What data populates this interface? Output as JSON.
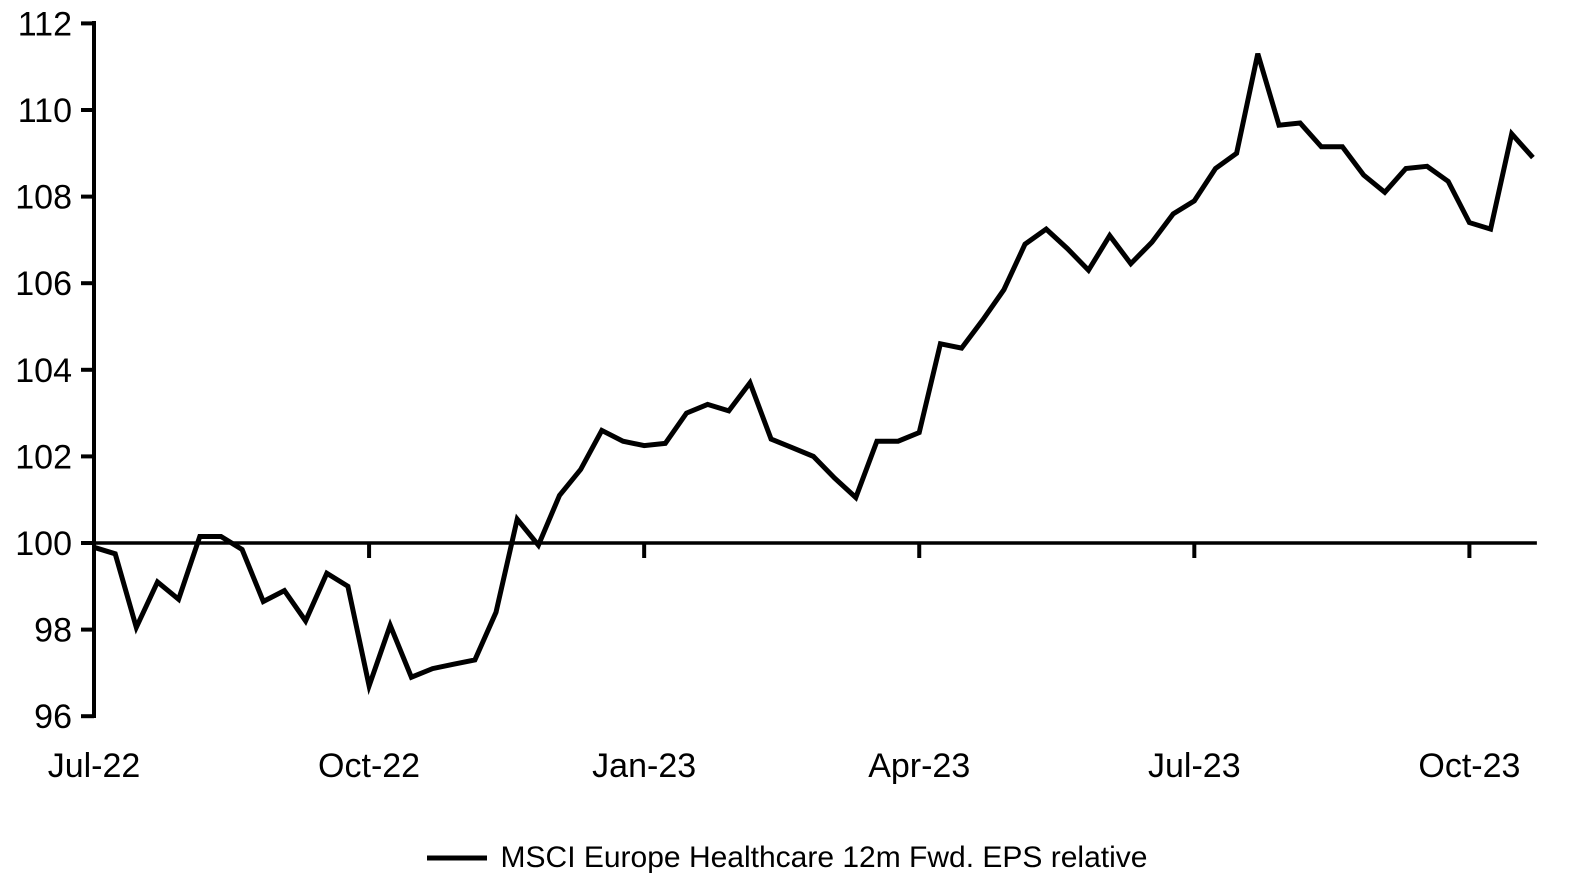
{
  "chart_data": {
    "type": "line",
    "title": "",
    "xlabel": "",
    "ylabel": "",
    "x_unit": "weeks from Jul-2022 (weekly observations)",
    "x": [
      0,
      1,
      2,
      3,
      4,
      5,
      6,
      7,
      8,
      9,
      10,
      11,
      12,
      13,
      14,
      15,
      16,
      17,
      18,
      19,
      20,
      21,
      22,
      23,
      24,
      25,
      26,
      27,
      28,
      29,
      30,
      31,
      32,
      33,
      34,
      35,
      36,
      37,
      38,
      39,
      40,
      41,
      42,
      43,
      44,
      45,
      46,
      47,
      48,
      49,
      50,
      51,
      52,
      53,
      54,
      55,
      56,
      57,
      58,
      59,
      60,
      61,
      62,
      63,
      64,
      65,
      66,
      67,
      68
    ],
    "series": [
      {
        "name": "MSCI Europe Healthcare 12m Fwd. EPS relative",
        "values": [
          99.9,
          99.75,
          98.05,
          99.1,
          98.7,
          100.15,
          100.15,
          99.85,
          98.65,
          98.9,
          98.2,
          99.3,
          99.0,
          96.7,
          98.1,
          96.9,
          97.1,
          97.2,
          97.3,
          98.4,
          100.55,
          99.95,
          101.1,
          101.7,
          102.6,
          102.35,
          102.25,
          102.3,
          103.0,
          103.2,
          103.05,
          103.7,
          102.4,
          102.2,
          102.0,
          101.5,
          101.05,
          102.35,
          102.35,
          102.55,
          104.6,
          104.5,
          105.15,
          105.85,
          106.9,
          107.25,
          106.8,
          106.3,
          107.1,
          106.45,
          106.95,
          107.6,
          107.9,
          108.65,
          109.0,
          111.3,
          109.65,
          109.7,
          109.15,
          109.15,
          108.5,
          108.1,
          108.65,
          108.7,
          108.35,
          107.4,
          107.25,
          109.45,
          108.9
        ]
      }
    ],
    "x_ticks": [
      {
        "week": 0,
        "label": "Jul-22"
      },
      {
        "week": 13,
        "label": "Oct-22"
      },
      {
        "week": 26,
        "label": "Jan-23"
      },
      {
        "week": 39,
        "label": "Apr-23"
      },
      {
        "week": 52,
        "label": "Jul-23"
      },
      {
        "week": 65,
        "label": "Oct-23"
      }
    ],
    "y_ticks": [
      96,
      98,
      100,
      102,
      104,
      106,
      108,
      110,
      112
    ],
    "ylim": [
      96,
      112
    ],
    "baseline": 100,
    "grid": false,
    "legend_position": "bottom",
    "line_color": "#000000",
    "axis_color": "#000000",
    "background": "#ffffff"
  },
  "legend": {
    "label": "MSCI Europe Healthcare 12m Fwd. EPS relative"
  }
}
